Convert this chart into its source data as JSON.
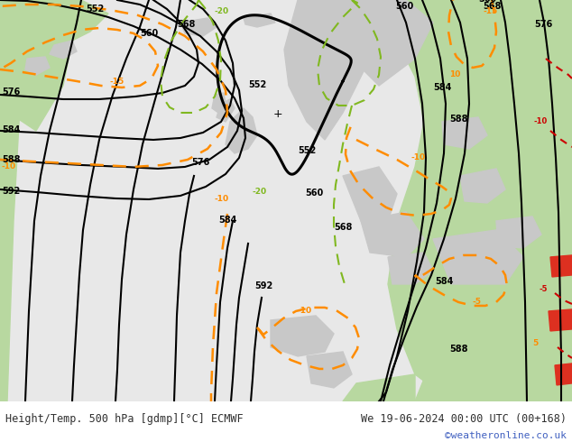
{
  "title_left": "Height/Temp. 500 hPa [gdmp][°C] ECMWF",
  "title_right": "We 19-06-2024 00:00 UTC (00+168)",
  "credit": "©weatheronline.co.uk",
  "green_color": "#b8d8a0",
  "gray_land": "#c8c8c8",
  "ocean_color": "#e8e8e8",
  "contour_color": "#000000",
  "temp_orange": "#ff8c00",
  "temp_green_dash": "#80b820",
  "temp_red": "#cc0000",
  "bottom_bar_color": "#d0d0d0",
  "text_color": "#303030",
  "credit_color": "#4060c0",
  "figsize": [
    6.34,
    4.9
  ],
  "dpi": 100
}
